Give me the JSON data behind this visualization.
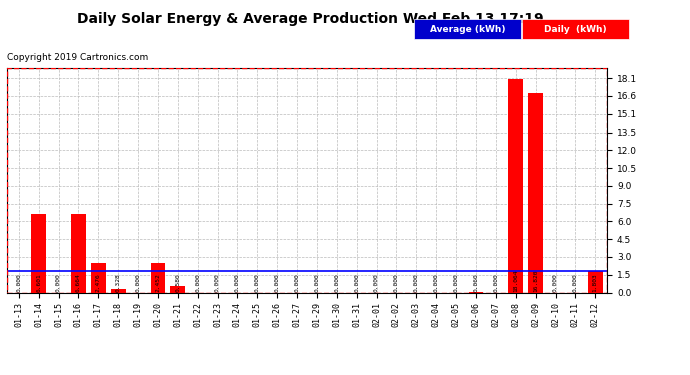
{
  "title": "Daily Solar Energy & Average Production Wed Feb 13 17:19",
  "copyright": "Copyright 2019 Cartronics.com",
  "categories": [
    "01-13",
    "01-14",
    "01-15",
    "01-16",
    "01-17",
    "01-18",
    "01-19",
    "01-20",
    "01-21",
    "01-22",
    "01-23",
    "01-24",
    "01-25",
    "01-26",
    "01-27",
    "01-29",
    "01-30",
    "01-31",
    "02-01",
    "02-02",
    "02-03",
    "02-04",
    "02-05",
    "02-06",
    "02-07",
    "02-08",
    "02-09",
    "02-10",
    "02-11",
    "02-12"
  ],
  "daily_values": [
    0.0,
    6.601,
    0.0,
    6.664,
    2.476,
    0.328,
    0.0,
    2.452,
    0.58,
    0.0,
    0.0,
    0.0,
    0.0,
    0.0,
    0.0,
    0.0,
    0.0,
    0.0,
    0.0,
    0.0,
    0.0,
    0.0,
    0.0,
    0.06,
    0.0,
    18.064,
    16.82,
    0.0,
    0.0,
    1.803
  ],
  "daily_labels": [
    "0.000",
    "6.601",
    "0.000",
    "6.664",
    "2.476",
    "0.328",
    "0.000",
    "2.452",
    "0.580",
    "0.000",
    "0.000",
    "0.000",
    "0.000",
    "0.000",
    "0.000",
    "0.000",
    "0.000",
    "0.000",
    "0.000",
    "0.000",
    "0.000",
    "0.000",
    "0.000",
    "0.060",
    "0.000",
    "18.064",
    "16.820",
    "0.000",
    "0.000",
    "1.803"
  ],
  "average_value": 1.803,
  "ylim": [
    0.0,
    19.0
  ],
  "yticks": [
    0.0,
    1.5,
    3.0,
    4.5,
    6.0,
    7.5,
    9.0,
    10.5,
    12.0,
    13.5,
    15.1,
    16.6,
    18.1
  ],
  "bar_color": "#ff0000",
  "avg_line_color": "#0000ff",
  "background_color": "#ffffff",
  "grid_color": "#bbbbbb",
  "legend_avg_bg": "#0000cc",
  "legend_daily_bg": "#ff0000",
  "legend_avg_text": "Average (kWh)",
  "legend_daily_text": "Daily  (kWh)"
}
